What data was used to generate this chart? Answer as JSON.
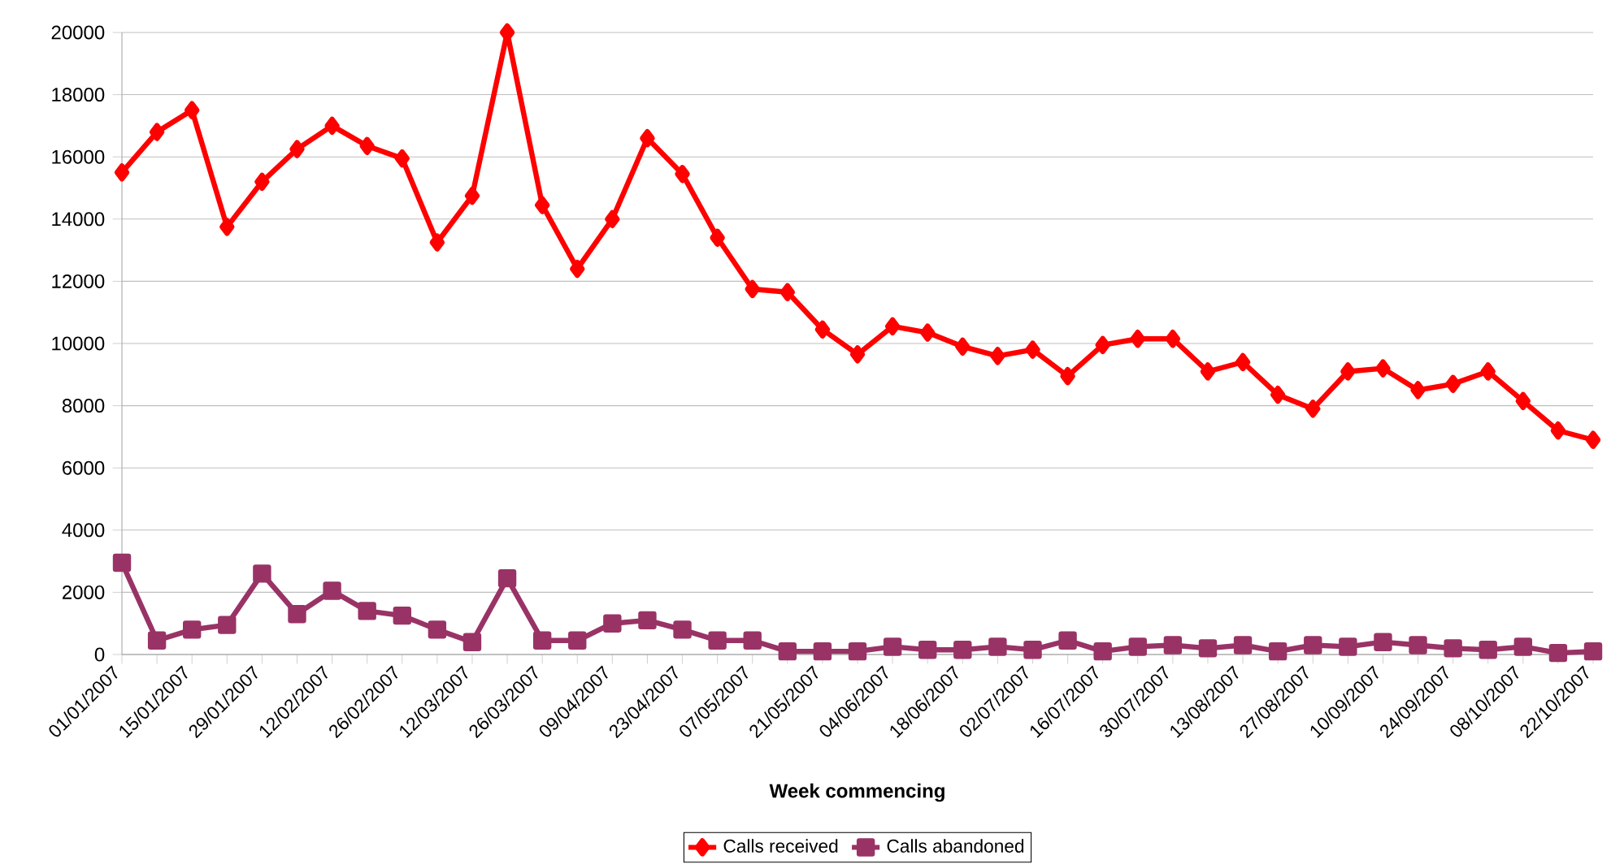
{
  "chart_data": {
    "type": "line",
    "xlabel": "Week commencing",
    "categories": [
      "01/01/2007",
      null,
      "15/01/2007",
      null,
      "29/01/2007",
      null,
      "12/02/2007",
      null,
      "26/02/2007",
      null,
      "12/03/2007",
      null,
      "26/03/2007",
      null,
      "09/04/2007",
      null,
      "23/04/2007",
      null,
      "07/05/2007",
      null,
      "21/05/2007",
      null,
      "04/06/2007",
      null,
      "18/06/2007",
      null,
      "02/07/2007",
      null,
      "16/07/2007",
      null,
      "30/07/2007",
      null,
      "13/08/2007",
      null,
      "27/08/2007",
      null,
      "10/09/2007",
      null,
      "24/09/2007",
      null,
      "08/10/2007",
      null,
      "22/10/2007"
    ],
    "series": [
      {
        "name": "Calls received",
        "color": "#ff0000",
        "marker": "diamond",
        "values": [
          15500,
          16800,
          17500,
          13750,
          15200,
          16250,
          17000,
          16350,
          15950,
          13250,
          14750,
          20000,
          14450,
          12400,
          14000,
          16600,
          15450,
          13400,
          11750,
          11650,
          10450,
          9650,
          10550,
          10350,
          9900,
          9600,
          9800,
          8950,
          9950,
          10150,
          10150,
          9100,
          9400,
          8350,
          7900,
          9100,
          9200,
          8500,
          8700,
          9100,
          8150,
          7200,
          6900
        ]
      },
      {
        "name": "Calls abandoned",
        "color": "#993366",
        "marker": "square",
        "values": [
          2950,
          450,
          800,
          950,
          2600,
          1300,
          2050,
          1400,
          1250,
          800,
          400,
          2450,
          450,
          450,
          1000,
          1100,
          800,
          450,
          450,
          100,
          100,
          100,
          250,
          150,
          150,
          250,
          150,
          450,
          100,
          250,
          300,
          200,
          300,
          100,
          300,
          250,
          400,
          300,
          200,
          150,
          250,
          50,
          100
        ]
      }
    ],
    "ylim": [
      0,
      20000
    ],
    "yticks": [
      0,
      2000,
      4000,
      6000,
      8000,
      10000,
      12000,
      14000,
      16000,
      18000,
      20000
    ],
    "grid": "y",
    "legend": "bottom",
    "line_style": "solid"
  }
}
